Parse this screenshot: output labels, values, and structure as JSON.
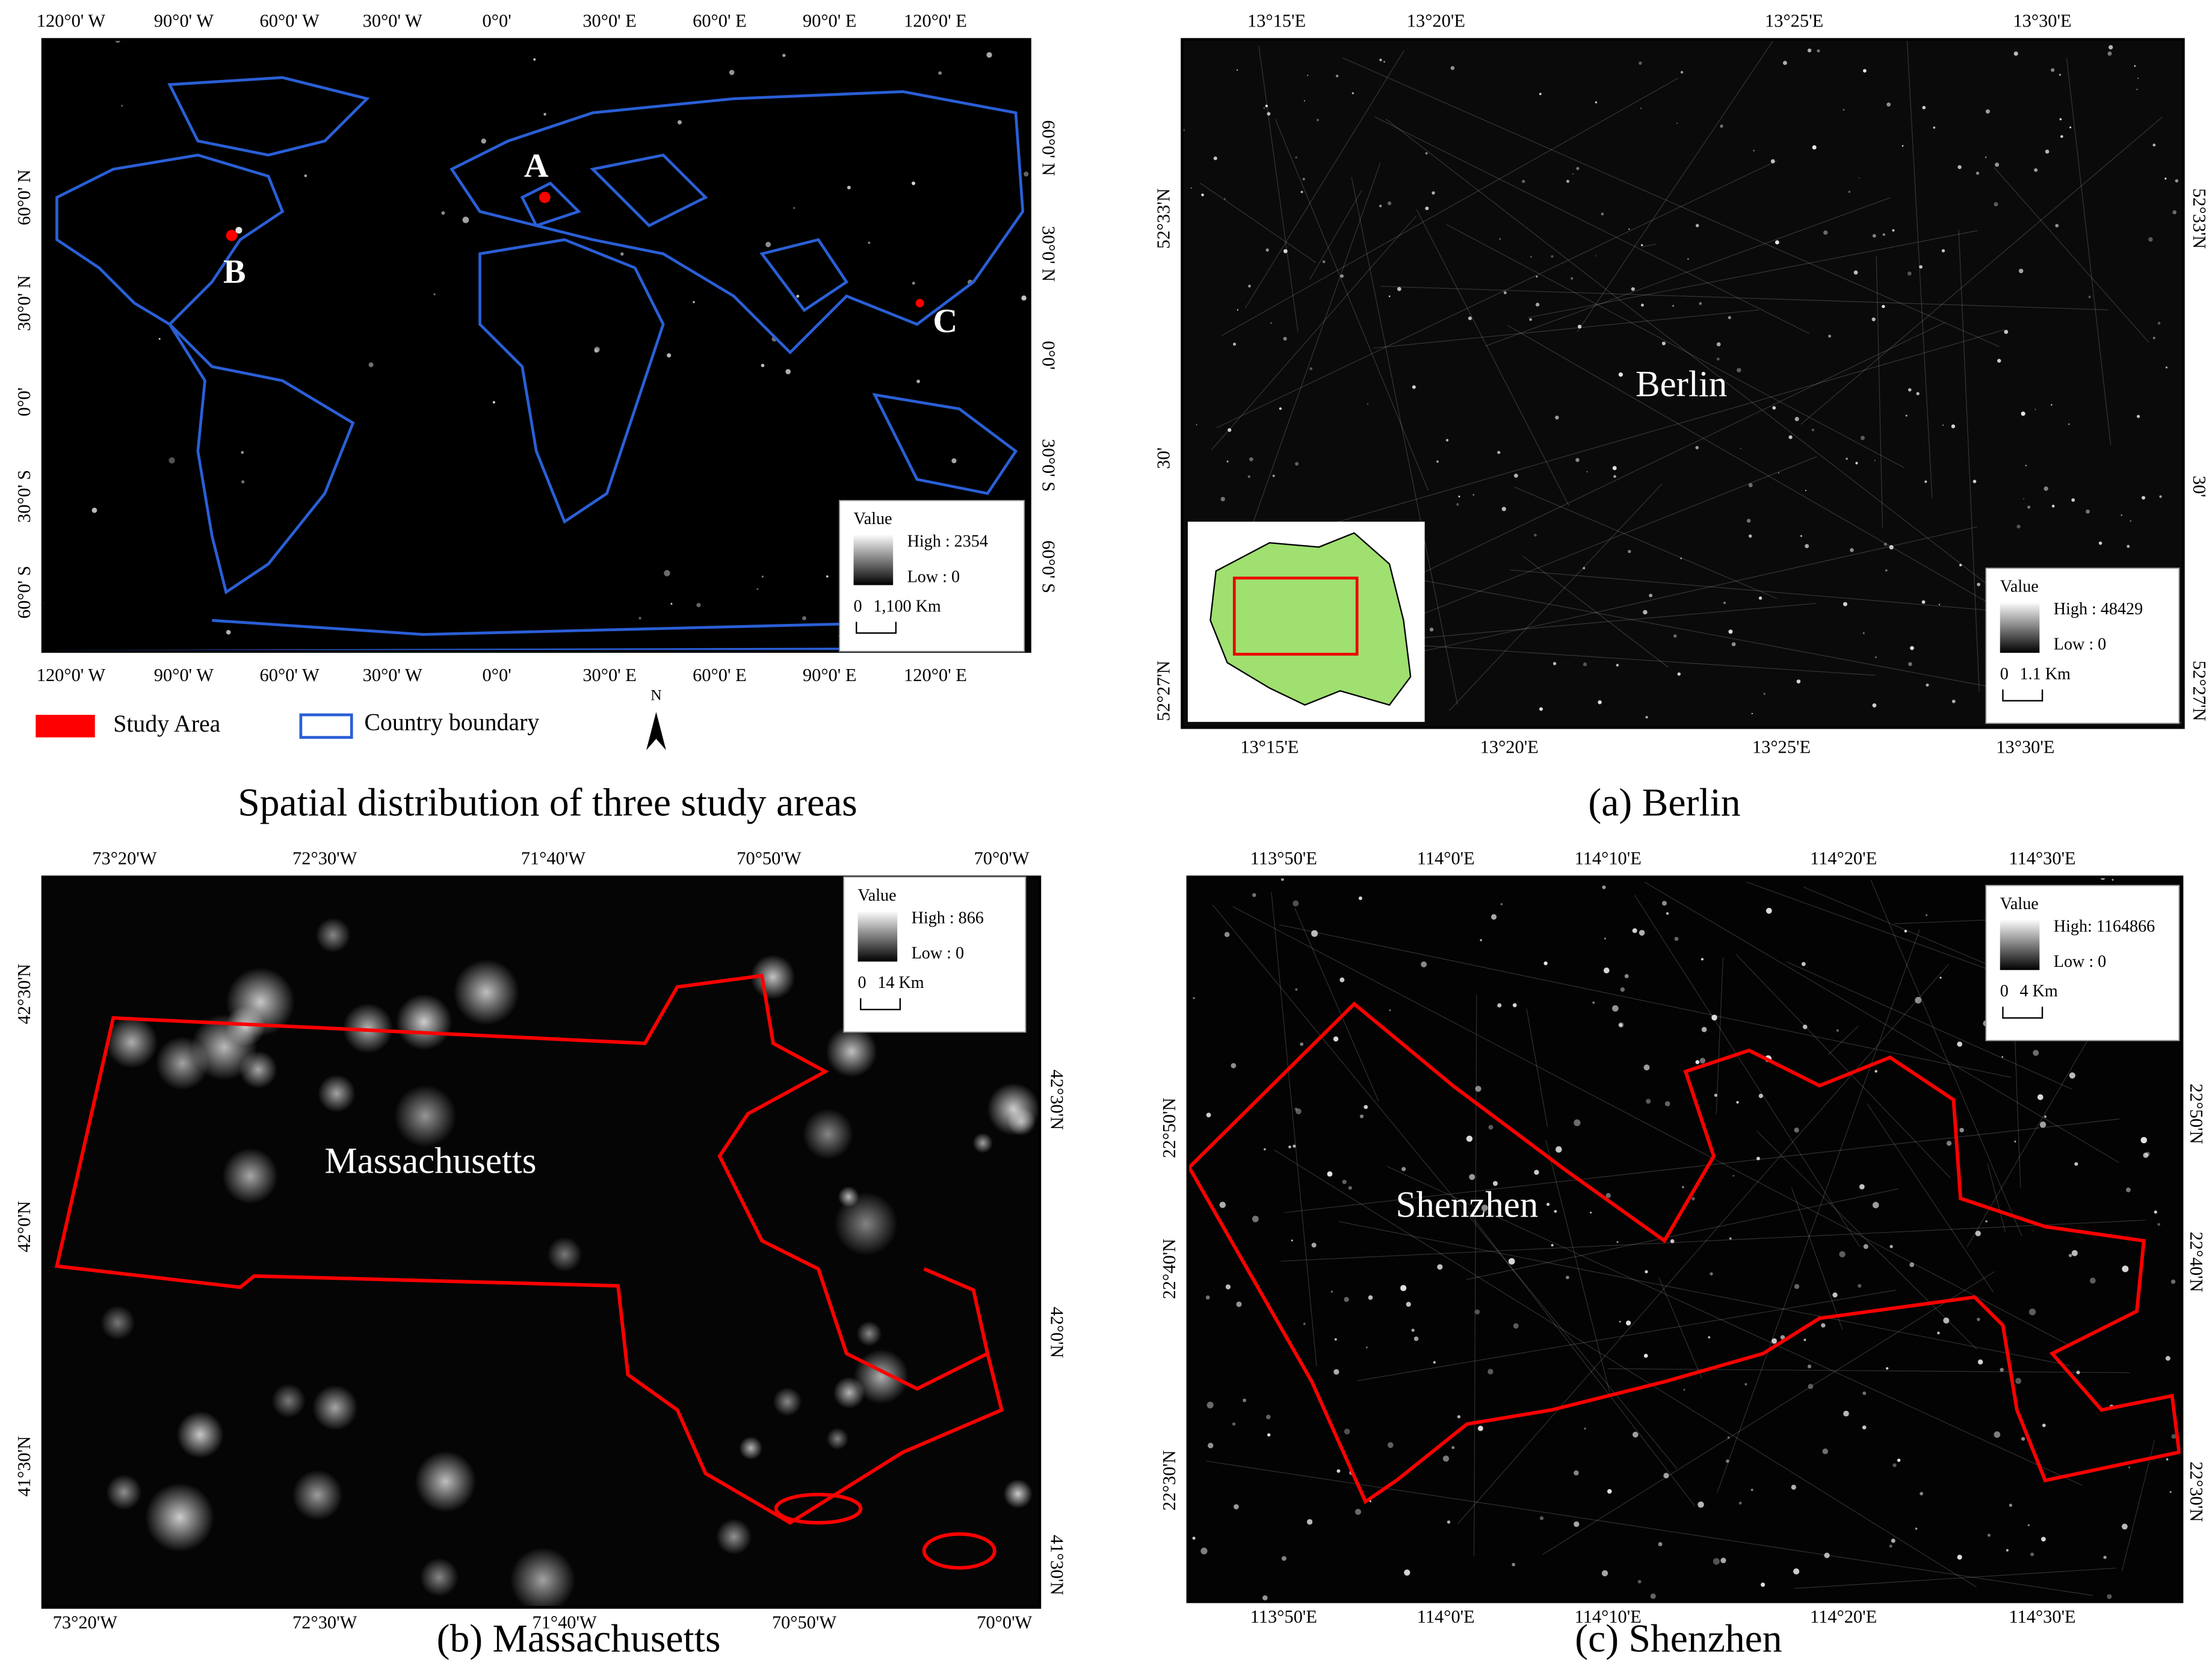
{
  "panels": [
    {
      "caption": "Spatial distribution of three study areas",
      "x_labels": [
        "120°0' W",
        "90°0' W",
        "60°0' W",
        "30°0' W",
        "0°0'",
        "30°0' E",
        "60°0' E",
        "90°0' E",
        "120°0' E"
      ],
      "y_labels": [
        "60°0' N",
        "30°0' N",
        "0°0'",
        "30°0' S",
        "60°0' S"
      ],
      "markers": [
        "A",
        "B",
        "C"
      ],
      "legend": {
        "title": "Value",
        "high": "High : 2354",
        "low": "Low : 0",
        "scale_start": "0",
        "scale_end": "1,100 Km"
      },
      "legend_items": [
        "Study Area",
        "Country boundary"
      ],
      "north": "N"
    },
    {
      "caption": "(a) Berlin",
      "x_labels": [
        "13°15'E",
        "13°20'E",
        "13°25'E",
        "13°30'E"
      ],
      "y_labels": [
        "52°33'N",
        "30'",
        "52°27'N"
      ],
      "place": "Berlin",
      "legend": {
        "title": "Value",
        "high": "High : 48429",
        "low": "Low : 0",
        "scale_start": "0",
        "scale_end": "1.1 Km"
      }
    },
    {
      "caption": "(b) Massachusetts",
      "x_labels": [
        "73°20'W",
        "72°30'W",
        "71°40'W",
        "70°50'W",
        "70°0'W"
      ],
      "y_labels": [
        "42°30'N",
        "42°0'N",
        "41°30'N"
      ],
      "place": "Massachusetts",
      "legend": {
        "title": "Value",
        "high": "High : 866",
        "low": "Low : 0",
        "scale_start": "0",
        "scale_end": "14 Km"
      }
    },
    {
      "caption": "(c) Shenzhen",
      "x_labels": [
        "113°50'E",
        "114°0'E",
        "114°10'E",
        "114°20'E",
        "114°30'E"
      ],
      "y_labels": [
        "22°50'N",
        "22°40'N",
        "22°30'N"
      ],
      "place": "Shenzhen",
      "legend": {
        "title": "Value",
        "high": "High: 1164866",
        "low": "Low : 0",
        "scale_start": "0",
        "scale_end": "4 Km"
      }
    }
  ]
}
